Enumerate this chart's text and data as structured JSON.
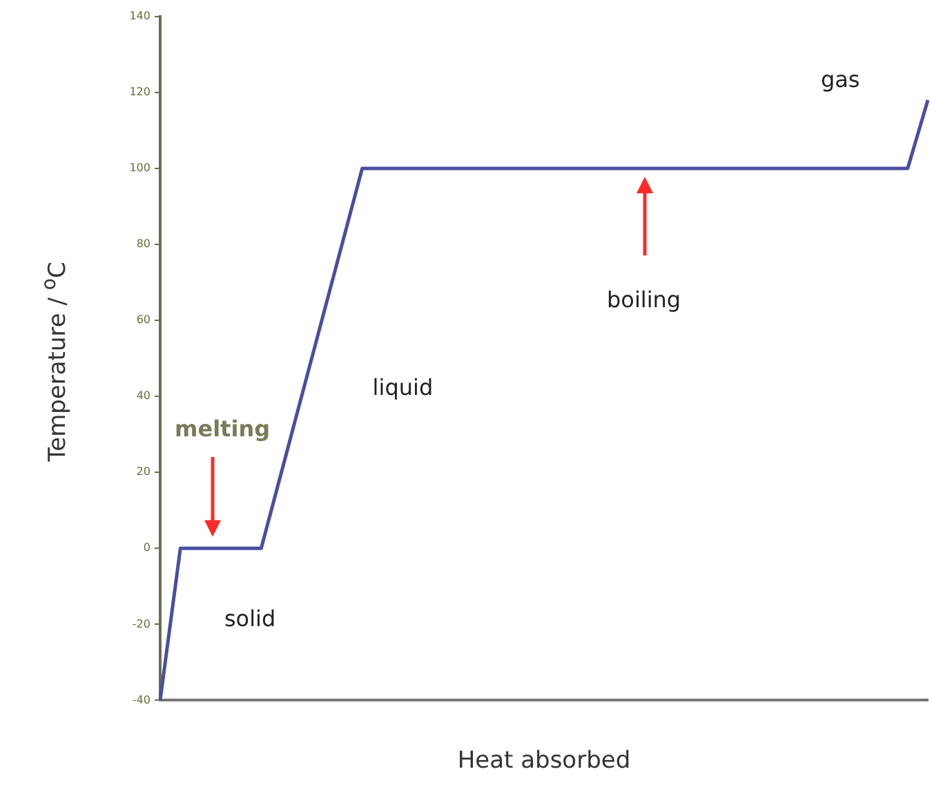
{
  "chart_data": {
    "type": "line",
    "xlabel": "Heat absorbed",
    "ylabel": "Temperature / $^{o}$C",
    "categories": [
      null,
      null,
      null,
      null,
      null,
      null,
      null,
      null,
      null,
      null,
      null,
      null,
      null,
      null,
      null,
      null,
      null,
      null,
      null,
      null,
      null,
      null,
      null,
      null,
      null,
      null,
      null,
      null,
      null,
      null,
      null,
      null,
      null,
      null,
      null,
      null,
      null,
      null,
      null
    ],
    "series": [
      {
        "color": "#4a4ea0",
        "values": [
          -40,
          0,
          0,
          0,
          0,
          0,
          20,
          40,
          60,
          80,
          100,
          100,
          100,
          100,
          100,
          100,
          100,
          100,
          100,
          100,
          100,
          100,
          100,
          100,
          100,
          100,
          100,
          100,
          100,
          100,
          100,
          100,
          100,
          100,
          100,
          100,
          100,
          100,
          118
        ]
      }
    ],
    "ylim": [
      -40,
      140
    ],
    "yticks": [
      -40,
      -20,
      0,
      20,
      40,
      60,
      80,
      100,
      120,
      140
    ],
    "grid": false,
    "legend": false,
    "marker": "none",
    "line_style": "solid",
    "annotations": [
      "melting",
      "solid",
      "liquid",
      "boiling",
      "gas"
    ]
  }
}
